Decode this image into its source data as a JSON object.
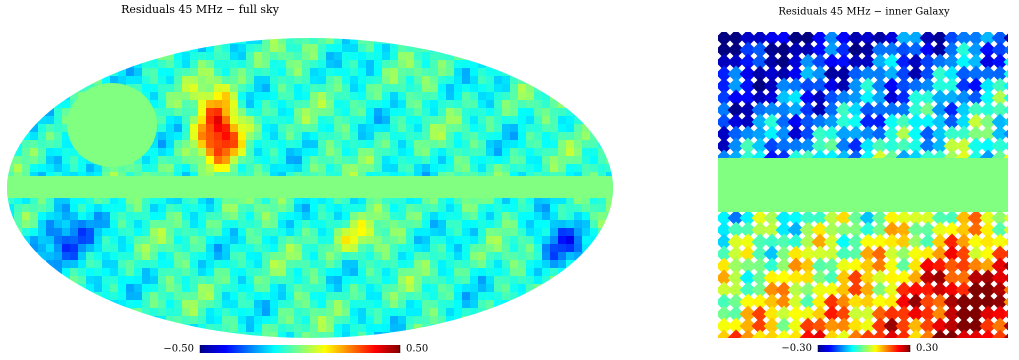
{
  "chart_data": [
    {
      "type": "map",
      "title": "Residuals 45 MHz − full sky",
      "projection": "mollweide",
      "clim": [
        -0.5,
        0.5
      ],
      "colorbar_ticks": [
        {
          "value": -0.5,
          "label": "−0.50"
        },
        {
          "value": 0.5,
          "label": "0.50"
        }
      ]
    },
    {
      "type": "map",
      "title": "Residuals 45 MHz − inner Galaxy",
      "projection": "cartesian",
      "clim": [
        -0.3,
        0.3
      ],
      "colorbar_ticks": [
        {
          "value": -0.3,
          "label": "−0.30"
        },
        {
          "value": 0.3,
          "label": "0.30"
        }
      ]
    }
  ]
}
